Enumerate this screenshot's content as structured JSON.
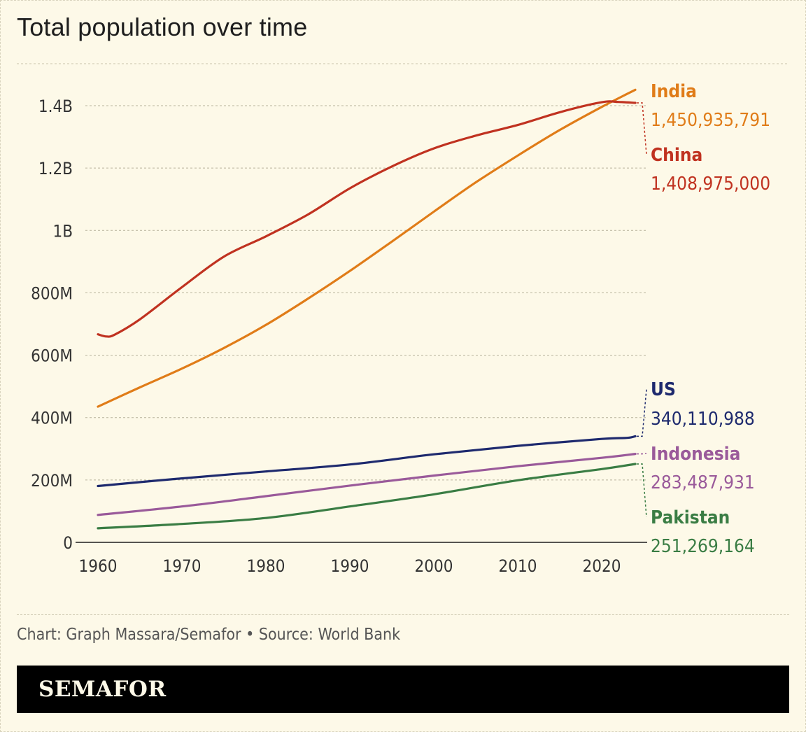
{
  "chart_data": {
    "type": "line",
    "title": "Total population over time",
    "xlabel": "",
    "ylabel": "",
    "xlim": [
      1960,
      2024
    ],
    "ylim": [
      0,
      1500000000
    ],
    "grid": true,
    "legend": "direct labels at right",
    "x_ticks": [
      1960,
      1970,
      1980,
      1990,
      2000,
      2010,
      2020
    ],
    "x_tick_labels": [
      "1960",
      "1970",
      "1980",
      "1990",
      "2000",
      "2010",
      "2020"
    ],
    "y_ticks": [
      0,
      200000000,
      400000000,
      600000000,
      800000000,
      1000000000,
      1200000000,
      1400000000
    ],
    "y_tick_labels": [
      "0",
      "200M",
      "400M",
      "600M",
      "800M",
      "1B",
      "1.2B",
      "1.4B"
    ],
    "series": [
      {
        "name": "India",
        "color": "#e07c18",
        "label_value": "1,450,935,791",
        "x": [
          1960,
          1965,
          1970,
          1975,
          1980,
          1985,
          1990,
          1995,
          2000,
          2005,
          2010,
          2015,
          2020,
          2024
        ],
        "y": [
          435000000,
          497000000,
          557000000,
          623000000,
          697000000,
          781000000,
          870000000,
          964000000,
          1060000000,
          1154000000,
          1240000000,
          1322000000,
          1396000000,
          1450935791
        ]
      },
      {
        "name": "China",
        "color": "#c03220",
        "label_value": "1,408,975,000",
        "x": [
          1960,
          1961,
          1962,
          1965,
          1970,
          1975,
          1980,
          1985,
          1990,
          1995,
          2000,
          2005,
          2010,
          2015,
          2020,
          2022,
          2024
        ],
        "y": [
          667000000,
          660000000,
          666000000,
          715000000,
          818000000,
          916000000,
          981000000,
          1051000000,
          1135000000,
          1205000000,
          1263000000,
          1304000000,
          1338000000,
          1379000000,
          1411000000,
          1412000000,
          1408975000
        ]
      },
      {
        "name": "US",
        "color": "#1e2a6e",
        "label_value": "340,110,988",
        "x": [
          1960,
          1970,
          1980,
          1990,
          2000,
          2010,
          2020,
          2023,
          2024
        ],
        "y": [
          180700000,
          205100000,
          227200000,
          249600000,
          282200000,
          309300000,
          331500000,
          334900000,
          340110988
        ]
      },
      {
        "name": "Indonesia",
        "color": "#9a5a9a",
        "label_value": "283,487,931",
        "x": [
          1960,
          1970,
          1980,
          1990,
          2000,
          2010,
          2020,
          2024
        ],
        "y": [
          88000000,
          115000000,
          148000000,
          182000000,
          214000000,
          244000000,
          271000000,
          283487931
        ]
      },
      {
        "name": "Pakistan",
        "color": "#3a7d44",
        "label_value": "251,269,164",
        "x": [
          1960,
          1970,
          1980,
          1990,
          2000,
          2010,
          2020,
          2024
        ],
        "y": [
          45000000,
          59000000,
          78000000,
          115000000,
          154000000,
          199000000,
          235000000,
          251269164
        ]
      }
    ]
  },
  "footer": {
    "source": "Chart: Graph Massara/Semafor • Source: World Bank",
    "brand": "SEMAFOR"
  }
}
